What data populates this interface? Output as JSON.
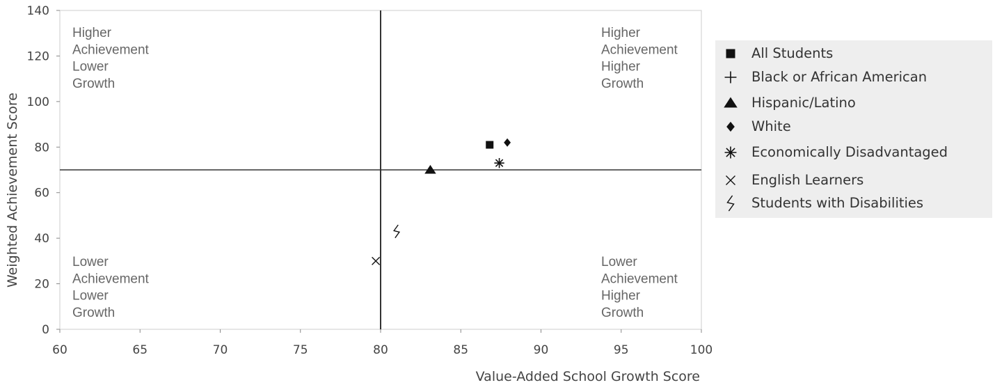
{
  "chart_data": {
    "type": "scatter",
    "xlabel": "Value-Added School Growth Score",
    "ylabel": "Weighted Achievement Score",
    "xlim": [
      60,
      100
    ],
    "ylim": [
      0,
      140
    ],
    "xticks": [
      "60",
      "65",
      "70",
      "75",
      "80",
      "85",
      "90",
      "95",
      "100"
    ],
    "yticks": [
      "0",
      "20",
      "40",
      "60",
      "80",
      "100",
      "120",
      "140"
    ],
    "reference_lines": {
      "x": 80,
      "y": 70
    },
    "grid": false,
    "legend_position": "right",
    "quadrant_labels": {
      "top_left": [
        "Higher",
        "Achievement",
        "Lower",
        "Growth"
      ],
      "top_right": [
        "Higher",
        "Achievement",
        "Higher",
        "Growth"
      ],
      "bottom_left": [
        "Lower",
        "Achievement",
        "Lower",
        "Growth"
      ],
      "bottom_right": [
        "Lower",
        "Achievement",
        "Higher",
        "Growth"
      ]
    },
    "series": [
      {
        "name": "All Students",
        "marker": "square",
        "x": 86.8,
        "y": 81
      },
      {
        "name": "Black or African American",
        "marker": "plus",
        "x": null,
        "y": null
      },
      {
        "name": "Hispanic/Latino",
        "marker": "triangle",
        "x": 83.1,
        "y": 70
      },
      {
        "name": "White",
        "marker": "diamond",
        "x": 87.9,
        "y": 82
      },
      {
        "name": "Economically Disadvantaged",
        "marker": "asterisk",
        "x": 87.4,
        "y": 73
      },
      {
        "name": "English Learners",
        "marker": "x",
        "x": 79.7,
        "y": 30
      },
      {
        "name": "Students with Disabilities",
        "marker": "squiggle",
        "x": 81,
        "y": 43
      }
    ],
    "colors": {
      "marker": "#111111",
      "reference_line": "#333333",
      "legend_bg": "#eeeeee",
      "frame": "#cccccc"
    }
  }
}
